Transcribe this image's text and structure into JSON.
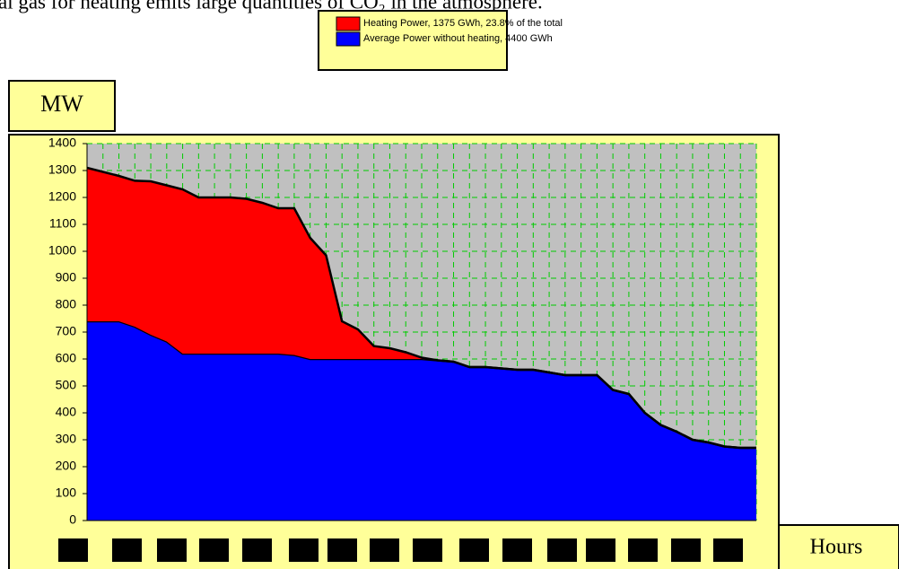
{
  "chart_data": {
    "type": "stacked-area",
    "caption": "al gas for heating emits large quantities of CO₂ in the atmosphere.",
    "y_label": "MW",
    "x_label": "Hours",
    "categories": [
      null,
      null,
      null,
      null,
      null,
      null,
      null,
      null,
      null,
      null,
      null,
      null,
      null,
      null,
      null,
      null,
      null,
      null,
      null,
      null,
      null,
      null,
      null,
      null,
      null,
      null,
      null,
      null,
      null,
      null,
      null,
      null,
      null,
      null,
      null,
      null,
      null,
      null,
      null,
      null,
      null,
      null,
      null
    ],
    "series": [
      {
        "name": "Average Power without heating, 4400 GWh",
        "color": "#0000ff",
        "values": [
          740,
          740,
          740,
          720,
          690,
          665,
          620,
          620,
          620,
          620,
          620,
          620,
          620,
          615,
          600,
          600,
          600,
          600,
          600,
          600,
          600,
          600,
          595,
          590,
          570,
          570,
          565,
          560,
          560,
          550,
          540,
          540,
          540,
          485,
          470,
          400,
          355,
          330,
          300,
          290,
          275,
          270,
          270
        ]
      },
      {
        "name": "Heating Power, 1375 GWh, 23.8% of the total",
        "color": "#ff0000",
        "values": [
          570,
          555,
          540,
          542,
          570,
          580,
          610,
          580,
          580,
          580,
          575,
          560,
          540,
          545,
          450,
          385,
          140,
          110,
          48,
          40,
          25,
          5,
          0,
          0,
          0,
          0,
          0,
          0,
          0,
          0,
          0,
          0,
          0,
          0,
          0,
          0,
          0,
          0,
          0,
          0,
          0,
          0,
          0
        ]
      }
    ],
    "legend_order": [
      1,
      0
    ],
    "ylim": [
      0,
      1400
    ],
    "yticks": [
      0,
      100,
      200,
      300,
      400,
      500,
      600,
      700,
      800,
      900,
      1000,
      1100,
      1200,
      1300,
      1400
    ],
    "grid": true
  }
}
